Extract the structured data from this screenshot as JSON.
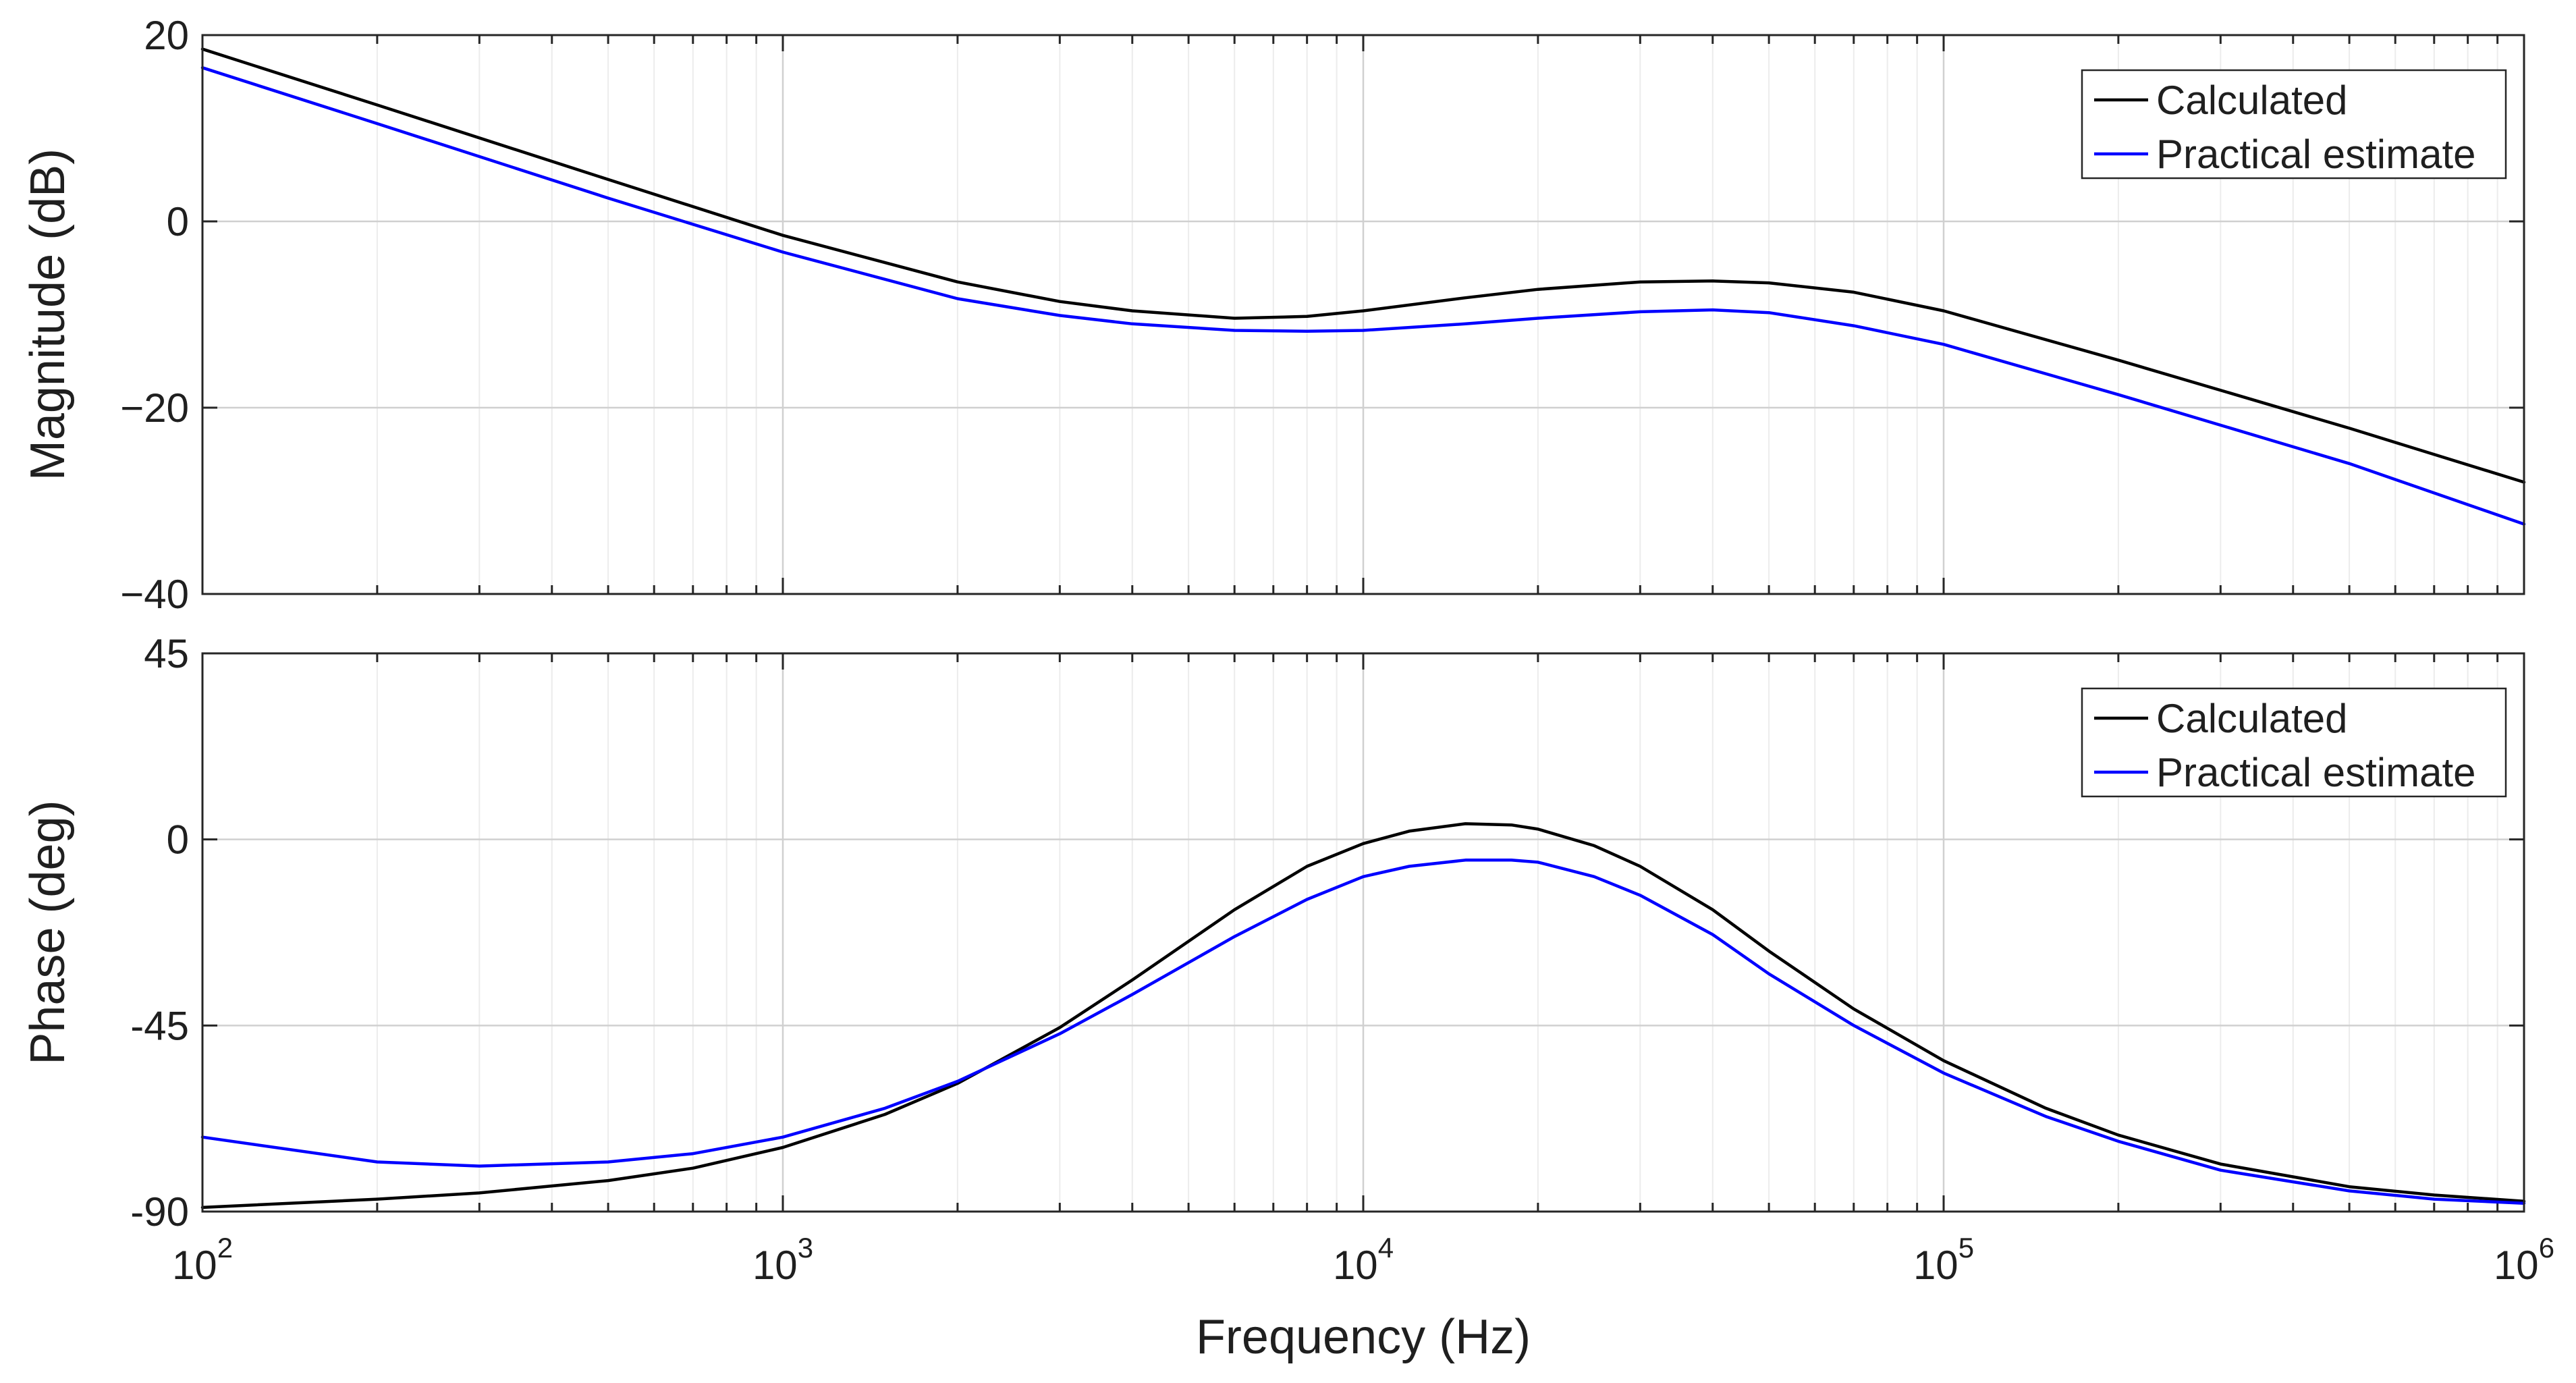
{
  "chart_data": [
    {
      "type": "line",
      "title": "",
      "xlabel": "",
      "ylabel": "Magnitude (dB)",
      "xscale": "log",
      "xlim": [
        100,
        1000000
      ],
      "ylim": [
        -40,
        20
      ],
      "yticks": [
        20,
        0,
        -20,
        -40
      ],
      "ytick_labels": [
        "20",
        "0",
        "−20",
        "−40"
      ],
      "grid": true,
      "legend_position": "top-right",
      "series": [
        {
          "name": "Calculated",
          "color": "#000000",
          "x": [
            100,
            200,
            500,
            1000,
            2000,
            3000,
            4000,
            6000,
            8000,
            10000,
            15000,
            20000,
            30000,
            40000,
            50000,
            70000,
            100000,
            200000,
            500000,
            1000000
          ],
          "y": [
            18.5,
            12.5,
            4.5,
            -1.5,
            -6.5,
            -8.6,
            -9.6,
            -10.4,
            -10.2,
            -9.6,
            -8.2,
            -7.3,
            -6.5,
            -6.4,
            -6.6,
            -7.6,
            -9.6,
            -14.9,
            -22.2,
            -28.0
          ]
        },
        {
          "name": "Practical estimate",
          "color": "#0000ff",
          "x": [
            100,
            200,
            500,
            1000,
            2000,
            3000,
            4000,
            6000,
            8000,
            10000,
            15000,
            20000,
            30000,
            40000,
            50000,
            70000,
            100000,
            200000,
            500000,
            1000000
          ],
          "y": [
            16.5,
            10.5,
            2.5,
            -3.3,
            -8.3,
            -10.1,
            -11.0,
            -11.7,
            -11.8,
            -11.7,
            -11.0,
            -10.4,
            -9.7,
            -9.5,
            -9.8,
            -11.2,
            -13.2,
            -18.6,
            -26.0,
            -32.5
          ]
        }
      ]
    },
    {
      "type": "line",
      "title": "",
      "xlabel": "Frequency (Hz)",
      "ylabel": "Phase (deg)",
      "xscale": "log",
      "xlim": [
        100,
        1000000
      ],
      "ylim": [
        -90,
        45
      ],
      "yticks": [
        45,
        0,
        -45,
        -90
      ],
      "ytick_labels": [
        "45",
        "0",
        "-45",
        "-90"
      ],
      "xticks": [
        100,
        1000,
        10000,
        100000,
        1000000
      ],
      "xtick_labels": [
        {
          "base": "10",
          "exp": "2"
        },
        {
          "base": "10",
          "exp": "3"
        },
        {
          "base": "10",
          "exp": "4"
        },
        {
          "base": "10",
          "exp": "5"
        },
        {
          "base": "10",
          "exp": "6"
        }
      ],
      "grid": true,
      "legend_position": "top-right",
      "series": [
        {
          "name": "Calculated",
          "color": "#000000",
          "x": [
            100,
            200,
            300,
            500,
            700,
            1000,
            1500,
            2000,
            3000,
            4000,
            6000,
            8000,
            10000,
            12000,
            15000,
            18000,
            20000,
            25000,
            30000,
            40000,
            50000,
            70000,
            100000,
            150000,
            200000,
            300000,
            500000,
            700000,
            1000000
          ],
          "y": [
            -89.0,
            -87.0,
            -85.5,
            -82.5,
            -79.5,
            -74.5,
            -66.5,
            -59.0,
            -45.5,
            -34.0,
            -17.0,
            -6.5,
            -1.0,
            2.0,
            3.8,
            3.5,
            2.5,
            -1.5,
            -6.5,
            -17.0,
            -27.0,
            -41.0,
            -53.5,
            -65.0,
            -71.5,
            -78.5,
            -84.0,
            -86.0,
            -87.5
          ]
        },
        {
          "name": "Practical estimate",
          "color": "#0000ff",
          "x": [
            100,
            200,
            300,
            500,
            700,
            1000,
            1500,
            2000,
            3000,
            4000,
            6000,
            8000,
            10000,
            12000,
            15000,
            18000,
            20000,
            25000,
            30000,
            40000,
            50000,
            70000,
            100000,
            150000,
            200000,
            300000,
            500000,
            700000,
            1000000
          ],
          "y": [
            -72.0,
            -78.0,
            -79.0,
            -78.0,
            -76.0,
            -72.0,
            -65.0,
            -58.5,
            -47.0,
            -37.5,
            -23.5,
            -14.5,
            -9.0,
            -6.5,
            -5.0,
            -5.0,
            -5.5,
            -9.0,
            -13.5,
            -23.0,
            -32.5,
            -45.0,
            -56.5,
            -67.0,
            -73.0,
            -80.0,
            -85.0,
            -87.0,
            -88.0
          ]
        }
      ]
    }
  ]
}
